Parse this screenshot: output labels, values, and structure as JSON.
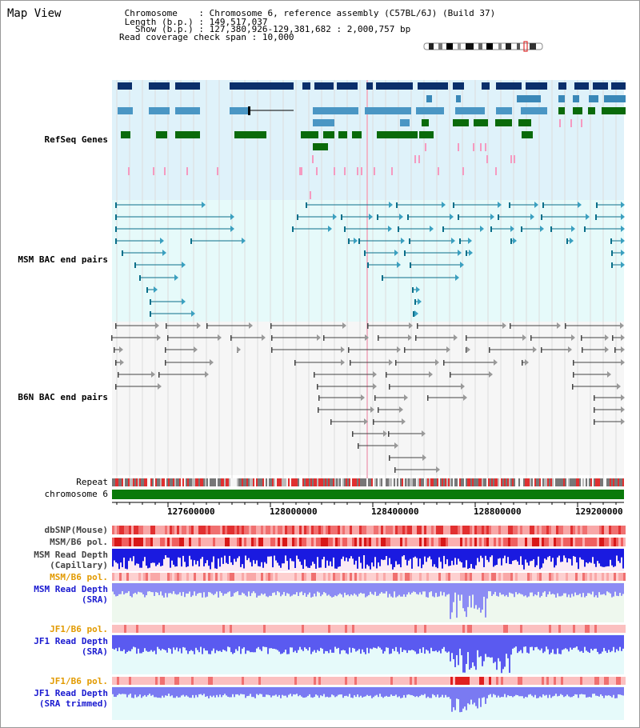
{
  "header": {
    "title": "Map View",
    "chromosome_key": "Chromosome",
    "chromosome_value": ": Chromosome 6, reference assembly (C57BL/6J) (Build 37)",
    "length_key": "Length (b.p.)",
    "length_value": ": 149,517,037",
    "show_key": "Show (b.p.)",
    "show_value": ": 127,380,926-129,381,682 : 2,000,757 bp",
    "coverage_key": "Read coverage check span",
    "coverage_value": ": 10,000"
  },
  "tracks": {
    "refseq": "RefSeq Genes",
    "msm_bac": "MSM BAC end pairs",
    "b6n_bac": "B6N BAC end pairs",
    "repeat": "Repeat",
    "chromosome": "chromosome 6",
    "dbsnp": "dbSNP(Mouse)",
    "msm_b6_pol_1": "MSM/B6 pol.",
    "msm_depth_cap_1": "MSM Read Depth",
    "msm_depth_cap_2": "(Capillary)",
    "msm_b6_pol_2": "MSM/B6 pol.",
    "msm_depth_sra_1": "MSM Read Depth",
    "msm_depth_sra_2": "(SRA)",
    "jf1_b6_pol_1": "JF1/B6 pol.",
    "jf1_depth_1": "JF1 Read Depth",
    "jf1_depth_2": "(SRA)",
    "jf1_b6_pol_2": "JF1/B6 pol.",
    "jf1_depth_trim_1": "JF1 Read Depth",
    "jf1_depth_trim_2": "(SRA trimmed)"
  },
  "axis": {
    "ticks": [
      "127600000",
      "128000000",
      "128400000",
      "128800000",
      "129200000"
    ]
  },
  "colors": {
    "refseq_label": "#1f1faa",
    "msm_label": "#0a6f8a",
    "b6n_label": "#555555",
    "orange_label": "#e29a00",
    "blue_label": "#1a1ad0",
    "refseq_bg": "#dff2fa",
    "msm_bg": "#e6fafa",
    "b6n_bg": "#f6f6f6",
    "chromosome_bar": "#0a7a0a"
  }
}
